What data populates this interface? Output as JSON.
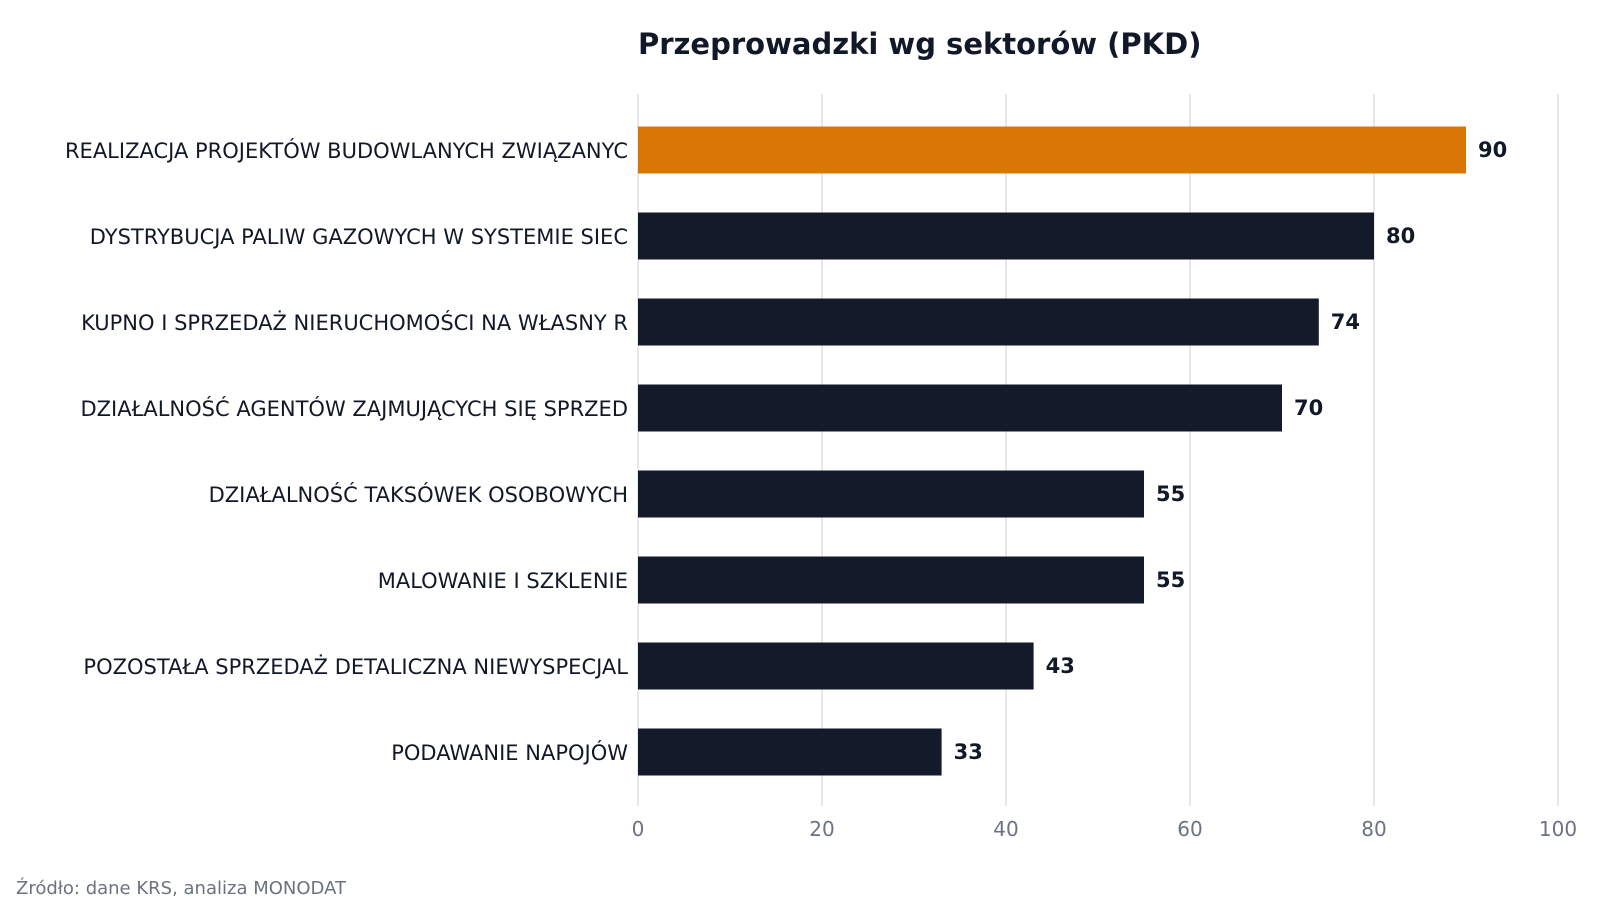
{
  "chart_data": {
    "type": "bar",
    "orientation": "horizontal",
    "title": "Przeprowadzki wg sektorów (PKD)",
    "categories": [
      "REALIZACJA PROJEKTÓW BUDOWLANYCH ZWIĄZANYC",
      "DYSTRYBUCJA PALIW GAZOWYCH W SYSTEMIE SIEC",
      "KUPNO I SPRZEDAŻ NIERUCHOMOŚCI NA WŁASNY R",
      "DZIAŁALNOŚĆ AGENTÓW ZAJMUJĄCYCH SIĘ SPRZED",
      "DZIAŁALNOŚĆ TAKSÓWEK OSOBOWYCH",
      "MALOWANIE I SZKLENIE",
      "POZOSTAŁA SPRZEDAŻ DETALICZNA NIEWYSPECJAL",
      "PODAWANIE NAPOJÓW"
    ],
    "values": [
      90,
      80,
      74,
      70,
      55,
      55,
      43,
      33
    ],
    "xlim": [
      0,
      100
    ],
    "xticks": [
      0,
      20,
      40,
      60,
      80,
      100
    ],
    "xlabel": "",
    "ylabel": "",
    "grid": "vertical",
    "legend": "none",
    "colors": {
      "highlight": "#d97706",
      "bar": "#131a29",
      "grid": "#e5e7eb"
    },
    "highlight_index": 0
  },
  "footer": {
    "source": "Źródło: dane KRS, analiza MONODAT"
  }
}
